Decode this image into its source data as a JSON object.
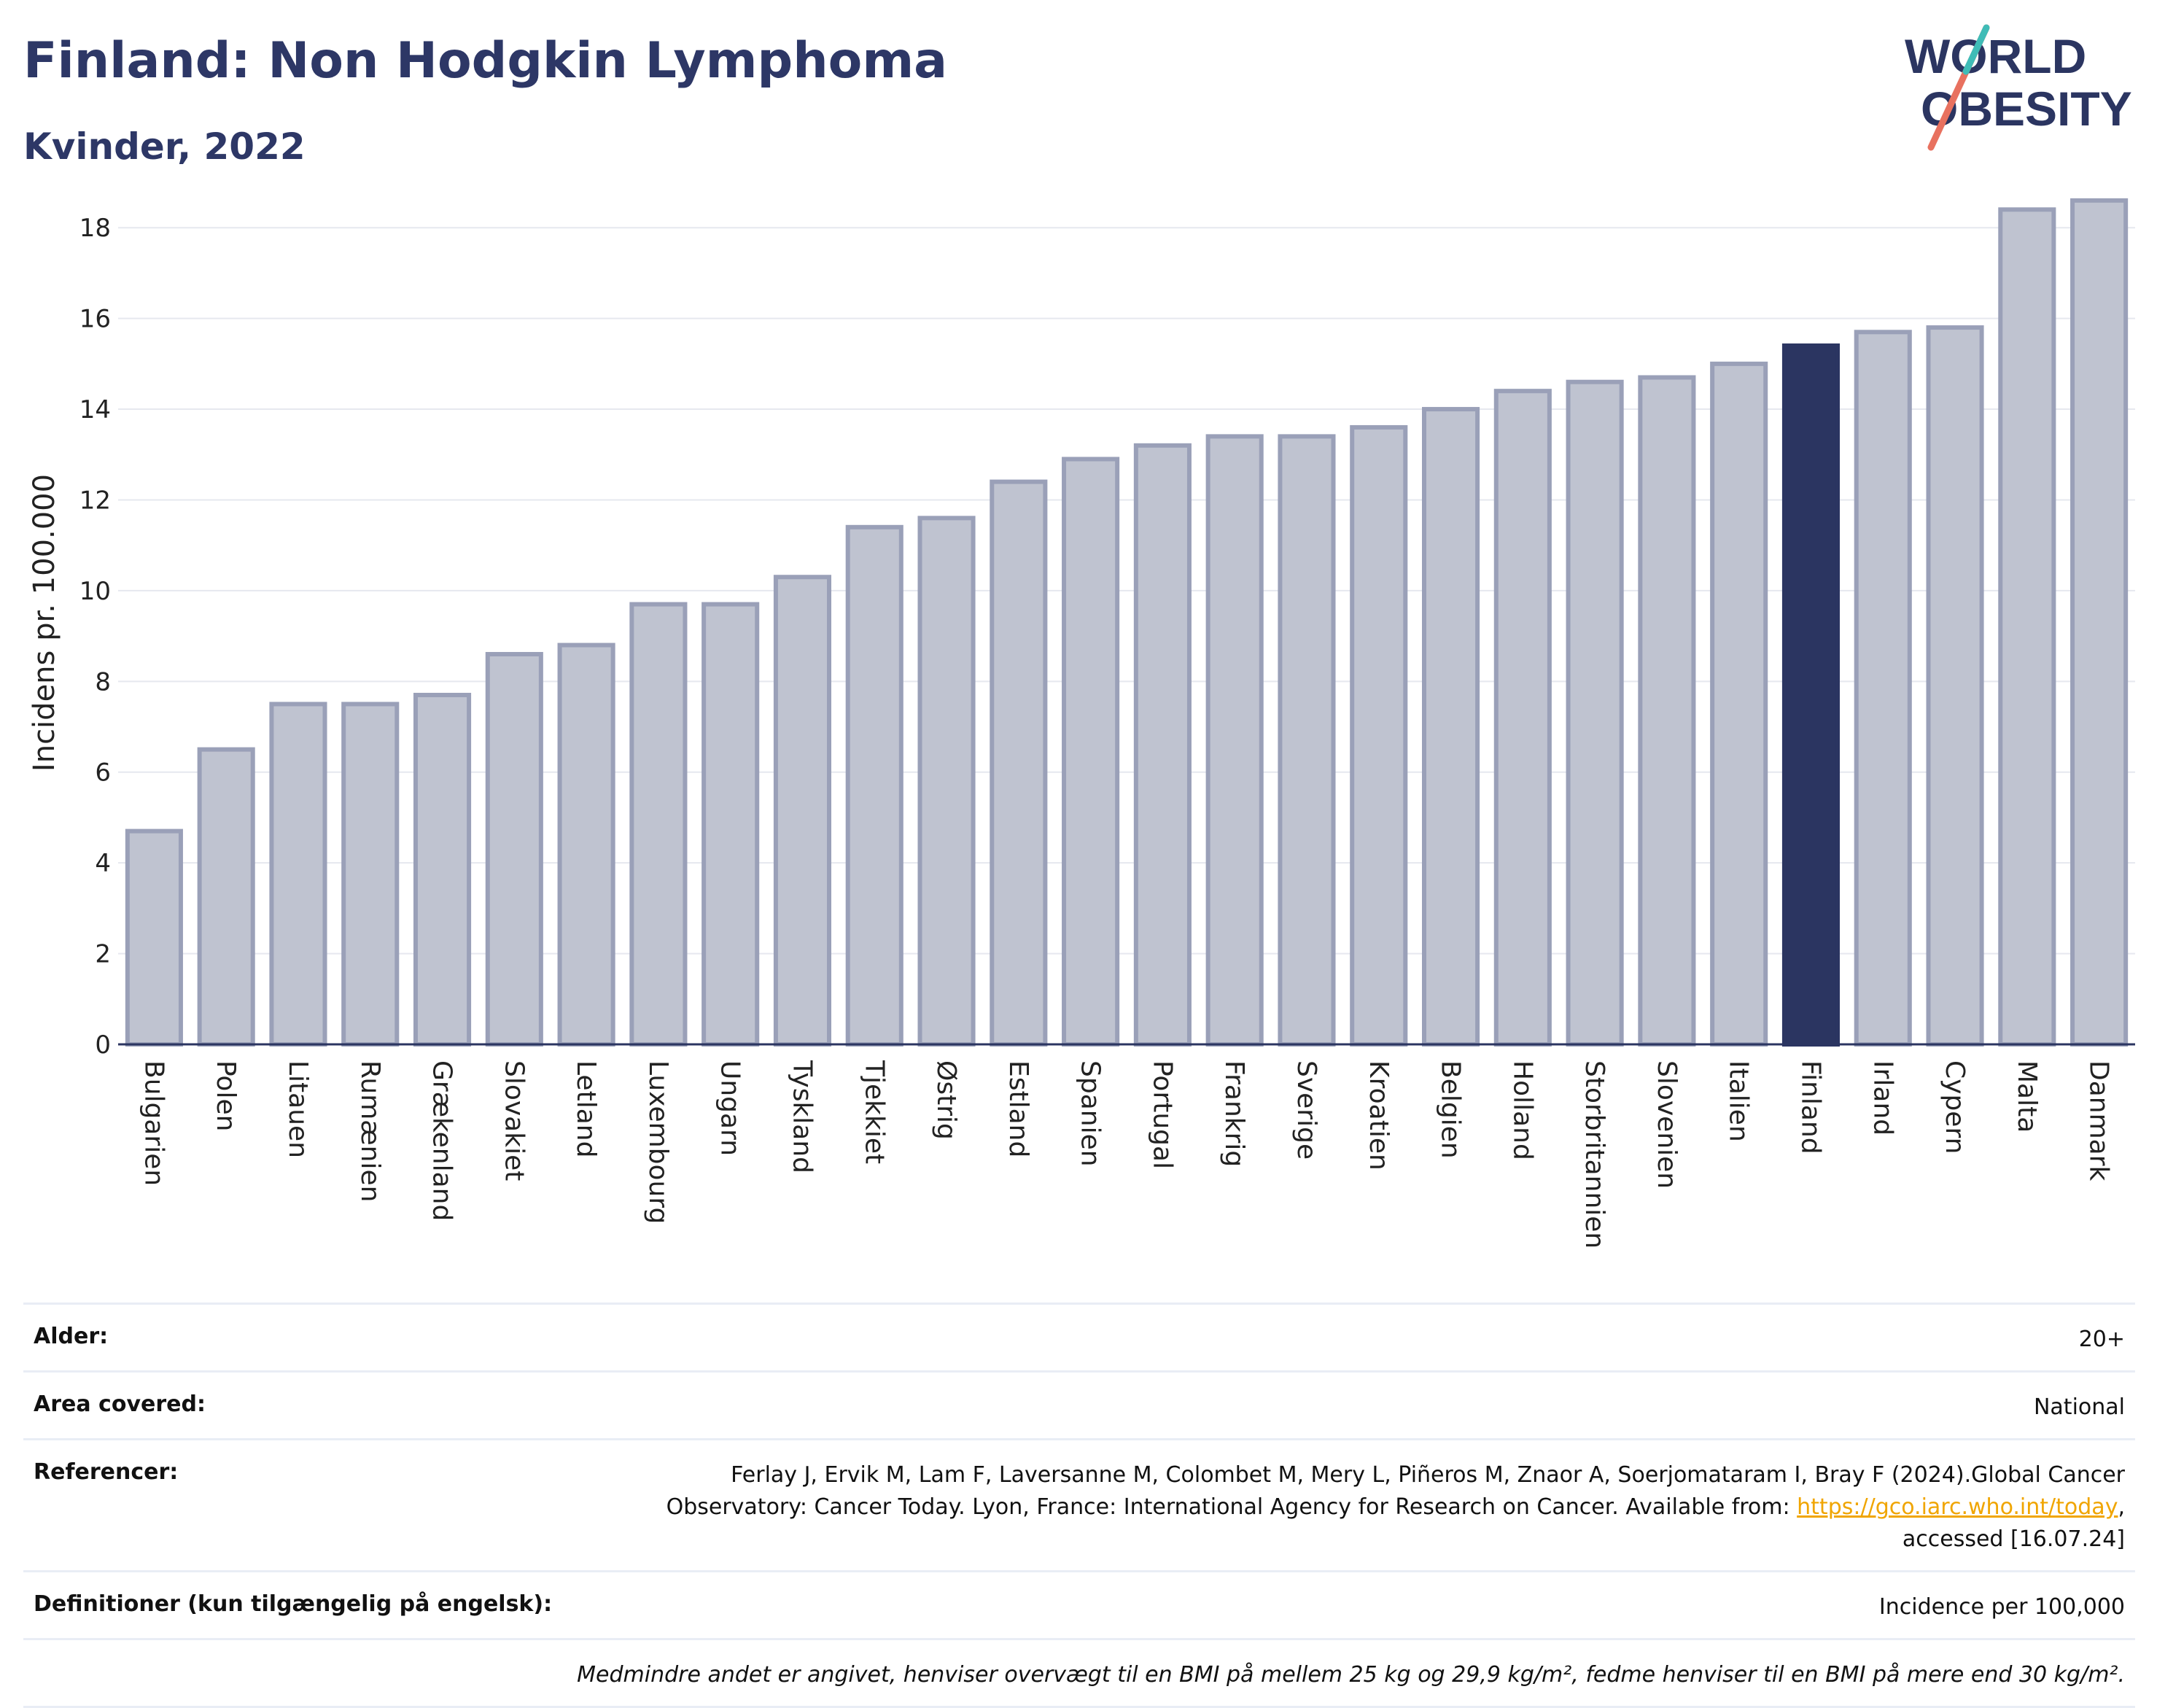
{
  "header": {
    "title": "Finland: Non Hodgkin Lymphoma",
    "subtitle": "Kvinder, 2022",
    "logo_line1": "WORLD",
    "logo_line2": "OBESITY"
  },
  "chart_data": {
    "type": "bar",
    "ylabel": "Incidens pr. 100.000",
    "ylim": [
      0,
      19
    ],
    "yticks": [
      0,
      2,
      4,
      6,
      8,
      10,
      12,
      14,
      16,
      18
    ],
    "highlight": "Finland",
    "colors": {
      "bar": "#bfc3d0",
      "bar_edge": "#9aa0b8",
      "highlight": "#2b3561",
      "grid": "#e6e8ef"
    },
    "categories": [
      "Bulgarien",
      "Polen",
      "Litauen",
      "Rumænien",
      "Grækenland",
      "Slovakiet",
      "Letland",
      "Luxembourg",
      "Ungarn",
      "Tyskland",
      "Tjekkiet",
      "Østrig",
      "Estland",
      "Spanien",
      "Portugal",
      "Frankrig",
      "Sverige",
      "Kroatien",
      "Belgien",
      "Holland",
      "Storbritannien",
      "Slovenien",
      "Italien",
      "Finland",
      "Irland",
      "Cypern",
      "Malta",
      "Danmark"
    ],
    "values": [
      4.7,
      6.5,
      7.5,
      7.5,
      7.7,
      8.6,
      8.8,
      9.7,
      9.7,
      10.3,
      11.4,
      11.6,
      12.4,
      12.9,
      13.2,
      13.4,
      13.4,
      13.6,
      14.0,
      14.4,
      14.6,
      14.7,
      15.0,
      15.4,
      15.7,
      15.8,
      18.4,
      18.6
    ]
  },
  "info": {
    "age_label": "Alder:",
    "age_value": "20+",
    "area_label": "Area covered:",
    "area_value": "National",
    "ref_label": "Referencer:",
    "ref_line1": "Ferlay J, Ervik M, Lam F, Laversanne M, Colombet M, Mery L, Piñeros M, Znaor A, Soerjomataram I, Bray F (2024).Global Cancer",
    "ref_line2_pre": "Observatory: Cancer Today. Lyon, France: International Agency for Research on Cancer. Available from:",
    "ref_link": "https://gco.iarc.who.int/today",
    "ref_line2_post": ",",
    "ref_line3": "accessed [16.07.24]",
    "def_label": "Definitioner (kun tilgængelig på engelsk):",
    "def_value": "Incidence per 100,000",
    "note": "Medmindre andet er angivet, henviser overvægt til en BMI på mellem 25 kg og 29,9 kg/m², fedme henviser til en BMI på mere end 30 kg/m²."
  }
}
